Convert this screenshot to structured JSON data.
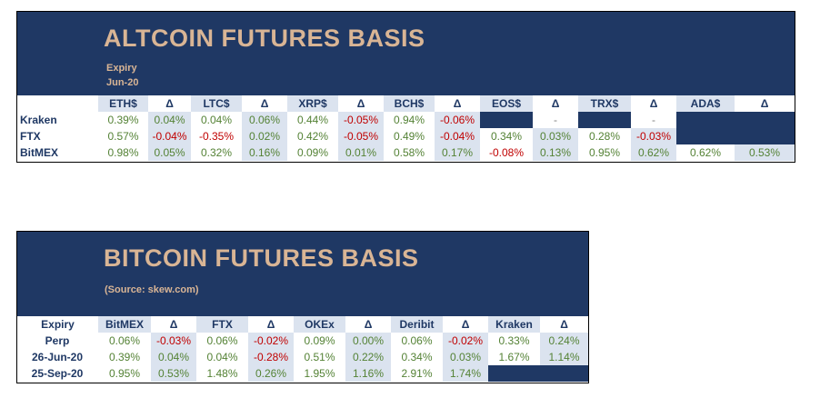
{
  "altcoin": {
    "title": "ALTCOIN FUTURES BASIS",
    "expiry_label": "Expiry",
    "expiry_value": "Jun-20",
    "columns": [
      "ETH$",
      "Δ",
      "LTC$",
      "Δ",
      "XRP$",
      "Δ",
      "BCH$",
      "Δ",
      "EOS$",
      "Δ",
      "TRX$",
      "Δ",
      "ADA$",
      "Δ"
    ],
    "rows": [
      {
        "label": "Kraken",
        "cells": [
          "0.39%",
          "0.04%",
          "0.04%",
          "0.06%",
          "0.44%",
          "-0.05%",
          "0.94%",
          "-0.06%",
          "",
          "-",
          "",
          "-",
          "",
          ""
        ]
      },
      {
        "label": "FTX",
        "cells": [
          "0.57%",
          "-0.04%",
          "-0.35%",
          "0.02%",
          "0.42%",
          "-0.05%",
          "0.49%",
          "-0.04%",
          "0.34%",
          "0.03%",
          "0.28%",
          "-0.03%",
          "",
          ""
        ]
      },
      {
        "label": "BitMEX",
        "cells": [
          "0.98%",
          "0.05%",
          "0.32%",
          "0.16%",
          "0.09%",
          "0.01%",
          "0.58%",
          "0.17%",
          "-0.08%",
          "0.13%",
          "0.95%",
          "0.62%",
          "0.62%",
          "0.53%"
        ]
      }
    ]
  },
  "bitcoin": {
    "title": "BITCOIN FUTURES BASIS",
    "source": "(Source: skew.com)",
    "expiry_header": "Expiry",
    "columns": [
      "BitMEX",
      "Δ",
      "FTX",
      "Δ",
      "OKEx",
      "Δ",
      "Deribit",
      "Δ",
      "Kraken",
      "Δ"
    ],
    "rows": [
      {
        "label": "Perp",
        "cells": [
          "0.06%",
          "-0.03%",
          "0.06%",
          "-0.02%",
          "0.09%",
          "0.00%",
          "0.06%",
          "-0.02%",
          "0.33%",
          "0.24%"
        ]
      },
      {
        "label": "26-Jun-20",
        "cells": [
          "0.39%",
          "0.04%",
          "0.04%",
          "-0.28%",
          "0.51%",
          "0.22%",
          "0.34%",
          "0.03%",
          "1.67%",
          "1.14%"
        ]
      },
      {
        "label": "25-Sep-20",
        "cells": [
          "0.95%",
          "0.53%",
          "1.48%",
          "0.26%",
          "1.95%",
          "1.16%",
          "2.91%",
          "1.74%",
          "",
          ""
        ]
      }
    ]
  },
  "colors": {
    "navy": "#1f3864",
    "title": "#d9b595",
    "positive": "#548235",
    "negative": "#c00000",
    "shade": "#dbe3ef"
  }
}
